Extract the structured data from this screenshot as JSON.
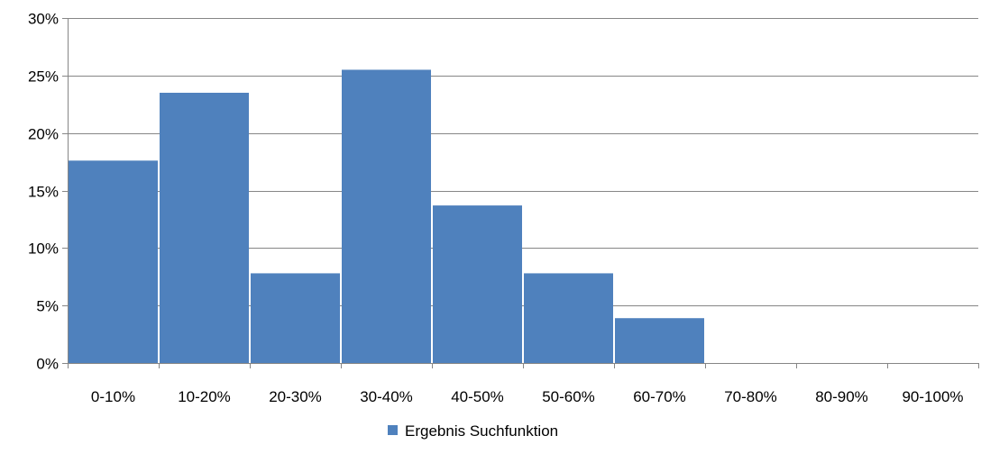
{
  "chart_data": {
    "type": "bar",
    "categories": [
      "0-10%",
      "10-20%",
      "20-30%",
      "30-40%",
      "40-50%",
      "50-60%",
      "60-70%",
      "70-80%",
      "80-90%",
      "90-100%"
    ],
    "series": [
      {
        "name": "Ergebnis Suchfunktion",
        "values": [
          17.6,
          23.5,
          7.8,
          25.5,
          13.7,
          7.8,
          3.9,
          0,
          0,
          0
        ],
        "color": "#4f81bd"
      }
    ],
    "y_ticks": [
      "0%",
      "5%",
      "10%",
      "15%",
      "20%",
      "25%",
      "30%"
    ],
    "ylim": [
      0,
      30
    ],
    "y_unit": "%",
    "grid": true,
    "gridline_color": "#868686",
    "legend_position": "bottom"
  }
}
